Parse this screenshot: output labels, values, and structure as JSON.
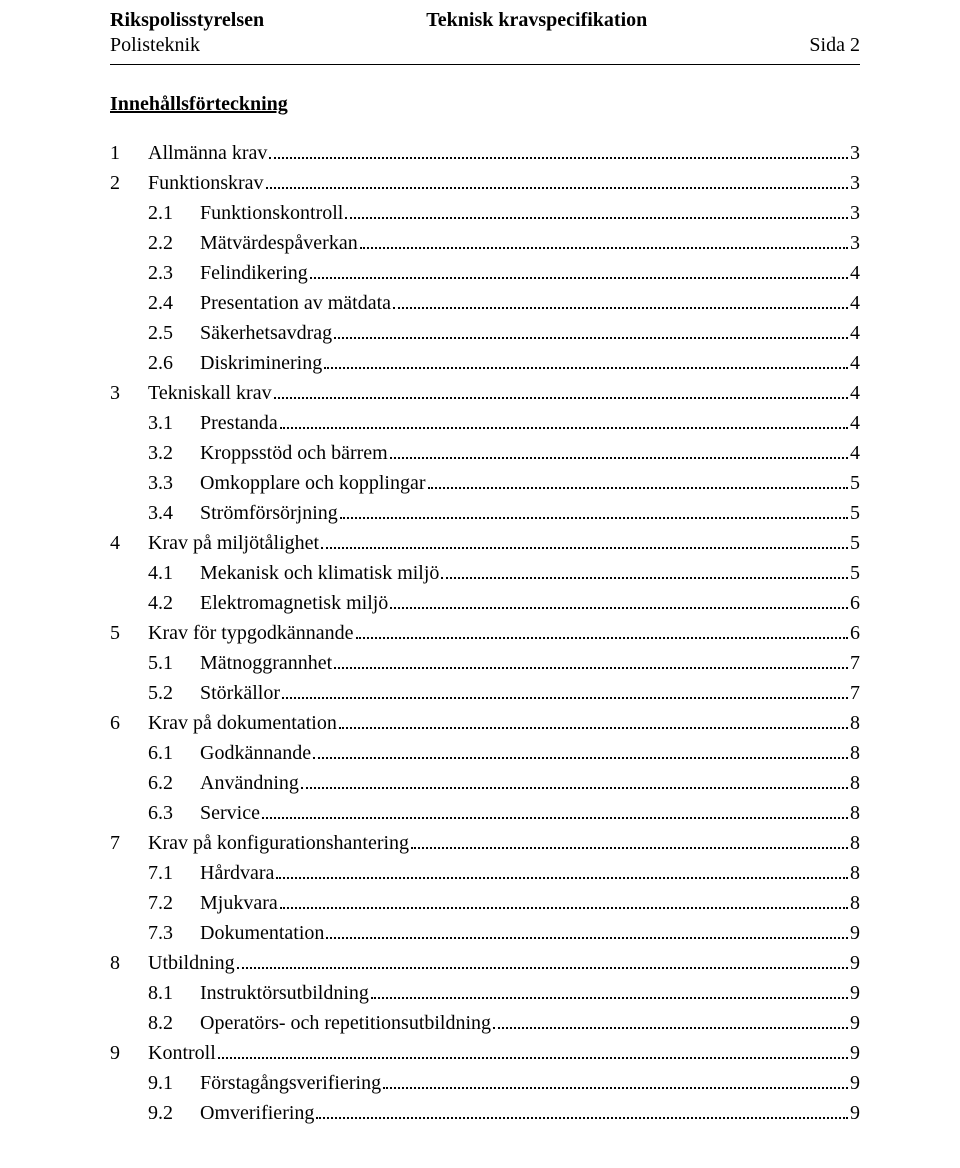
{
  "header": {
    "org": "Rikspolisstyrelsen",
    "dept": "Polisteknik",
    "title": "Teknisk kravspecifikation",
    "page_label": "Sida 2"
  },
  "toc_title": "Innehållsförteckning",
  "toc": [
    {
      "num": "1",
      "label": "Allmänna krav",
      "page": "3",
      "level": 0
    },
    {
      "num": "2",
      "label": "Funktionskrav",
      "page": "3",
      "level": 0
    },
    {
      "num": "2.1",
      "label": "Funktionskontroll",
      "page": "3",
      "level": 1
    },
    {
      "num": "2.2",
      "label": "Mätvärdespåverkan",
      "page": "3",
      "level": 1
    },
    {
      "num": "2.3",
      "label": "Felindikering",
      "page": "4",
      "level": 1
    },
    {
      "num": "2.4",
      "label": "Presentation av mätdata",
      "page": "4",
      "level": 1
    },
    {
      "num": "2.5",
      "label": "Säkerhetsavdrag",
      "page": "4",
      "level": 1
    },
    {
      "num": "2.6",
      "label": "Diskriminering",
      "page": "4",
      "level": 1
    },
    {
      "num": "3",
      "label": "Tekniskall krav",
      "page": "4",
      "level": 0
    },
    {
      "num": "3.1",
      "label": "Prestanda",
      "page": "4",
      "level": 1
    },
    {
      "num": "3.2",
      "label": "Kroppsstöd och bärrem",
      "page": "4",
      "level": 1
    },
    {
      "num": "3.3",
      "label": "Omkopplare och kopplingar",
      "page": "5",
      "level": 1
    },
    {
      "num": "3.4",
      "label": "Strömförsörjning",
      "page": "5",
      "level": 1
    },
    {
      "num": "4",
      "label": "Krav på miljötålighet",
      "page": "5",
      "level": 0
    },
    {
      "num": "4.1",
      "label": "Mekanisk och klimatisk miljö",
      "page": "5",
      "level": 1
    },
    {
      "num": "4.2",
      "label": "Elektromagnetisk miljö",
      "page": "6",
      "level": 1
    },
    {
      "num": "5",
      "label": "Krav för typgodkännande",
      "page": "6",
      "level": 0
    },
    {
      "num": "5.1",
      "label": "Mätnoggrannhet",
      "page": "7",
      "level": 1
    },
    {
      "num": "5.2",
      "label": "Störkällor",
      "page": "7",
      "level": 1
    },
    {
      "num": "6",
      "label": "Krav på dokumentation",
      "page": "8",
      "level": 0
    },
    {
      "num": "6.1",
      "label": "Godkännande",
      "page": "8",
      "level": 1
    },
    {
      "num": "6.2",
      "label": "Användning",
      "page": "8",
      "level": 1
    },
    {
      "num": "6.3",
      "label": "Service",
      "page": "8",
      "level": 1
    },
    {
      "num": "7",
      "label": "Krav på konfigurationshantering",
      "page": "8",
      "level": 0
    },
    {
      "num": "7.1",
      "label": "Hårdvara",
      "page": "8",
      "level": 1
    },
    {
      "num": "7.2",
      "label": "Mjukvara",
      "page": "8",
      "level": 1
    },
    {
      "num": "7.3",
      "label": "Dokumentation",
      "page": "9",
      "level": 1
    },
    {
      "num": "8",
      "label": "Utbildning",
      "page": "9",
      "level": 0
    },
    {
      "num": "8.1",
      "label": "Instruktörsutbildning",
      "page": "9",
      "level": 1
    },
    {
      "num": "8.2",
      "label": "Operatörs- och repetitionsutbildning",
      "page": "9",
      "level": 1
    },
    {
      "num": "9",
      "label": "Kontroll",
      "page": "9",
      "level": 0
    },
    {
      "num": "9.1",
      "label": "Förstagångsverifiering",
      "page": "9",
      "level": 1
    },
    {
      "num": "9.2",
      "label": "Omverifiering",
      "page": "9",
      "level": 1
    }
  ]
}
